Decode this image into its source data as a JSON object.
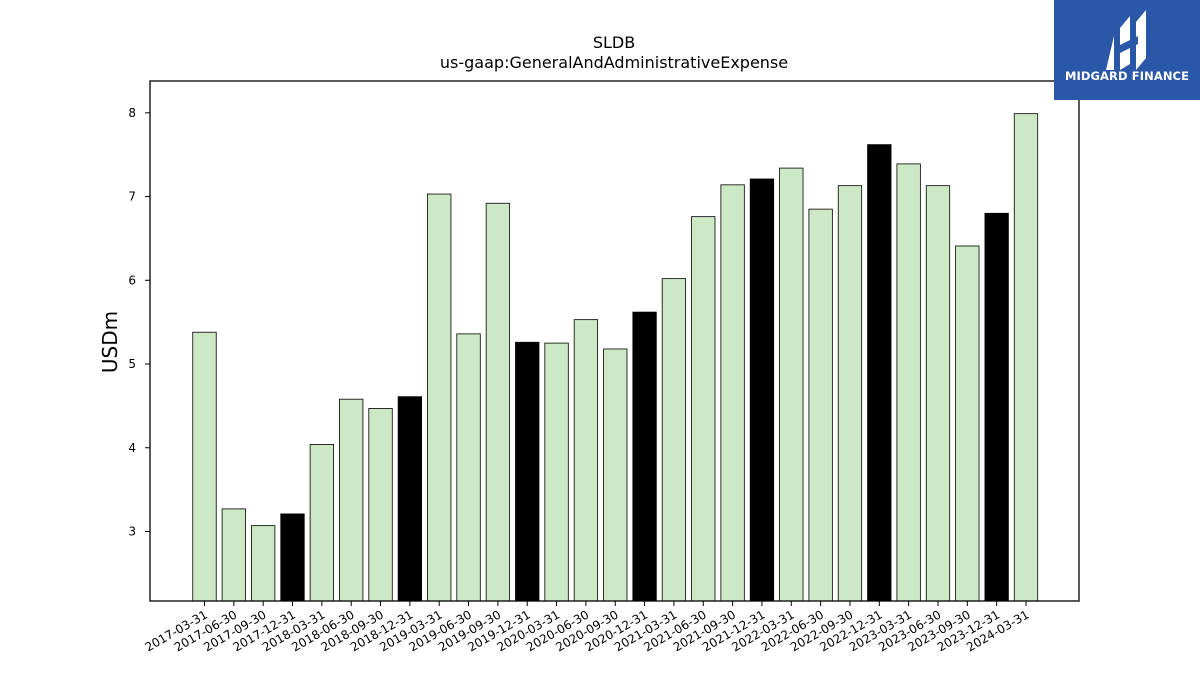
{
  "logo": {
    "text": "MIDGARD FINANCE",
    "background": "#2b57a8"
  },
  "chart_data": {
    "type": "bar",
    "title": "SLDB",
    "subtitle": "us-gaap:GeneralAndAdministrativeExpense",
    "xlabel": "",
    "ylabel": "USDm",
    "ylim": [
      2.17,
      8.38
    ],
    "yticks": [
      3,
      4,
      5,
      6,
      7,
      8
    ],
    "grid": false,
    "legend": "none",
    "colors": {
      "quarter": "#cde8c5",
      "year_end": "#000000",
      "edge": "#000000"
    },
    "categories": [
      "2017-03-31",
      "2017-06-30",
      "2017-09-30",
      "2017-12-31",
      "2018-03-31",
      "2018-06-30",
      "2018-09-30",
      "2018-12-31",
      "2019-03-31",
      "2019-06-30",
      "2019-09-30",
      "2019-12-31",
      "2020-03-31",
      "2020-06-30",
      "2020-09-30",
      "2020-12-31",
      "2021-03-31",
      "2021-06-30",
      "2021-09-30",
      "2021-12-31",
      "2022-03-31",
      "2022-06-30",
      "2022-09-30",
      "2022-12-31",
      "2023-03-31",
      "2023-06-30",
      "2023-09-30",
      "2023-12-31",
      "2024-03-31"
    ],
    "values": [
      5.38,
      3.27,
      3.07,
      3.21,
      4.04,
      4.58,
      4.47,
      4.61,
      7.03,
      5.36,
      6.92,
      5.26,
      5.25,
      5.53,
      5.18,
      5.62,
      6.02,
      6.76,
      7.14,
      7.21,
      7.34,
      6.85,
      7.13,
      7.62,
      7.39,
      7.13,
      6.41,
      6.8,
      7.99
    ]
  }
}
